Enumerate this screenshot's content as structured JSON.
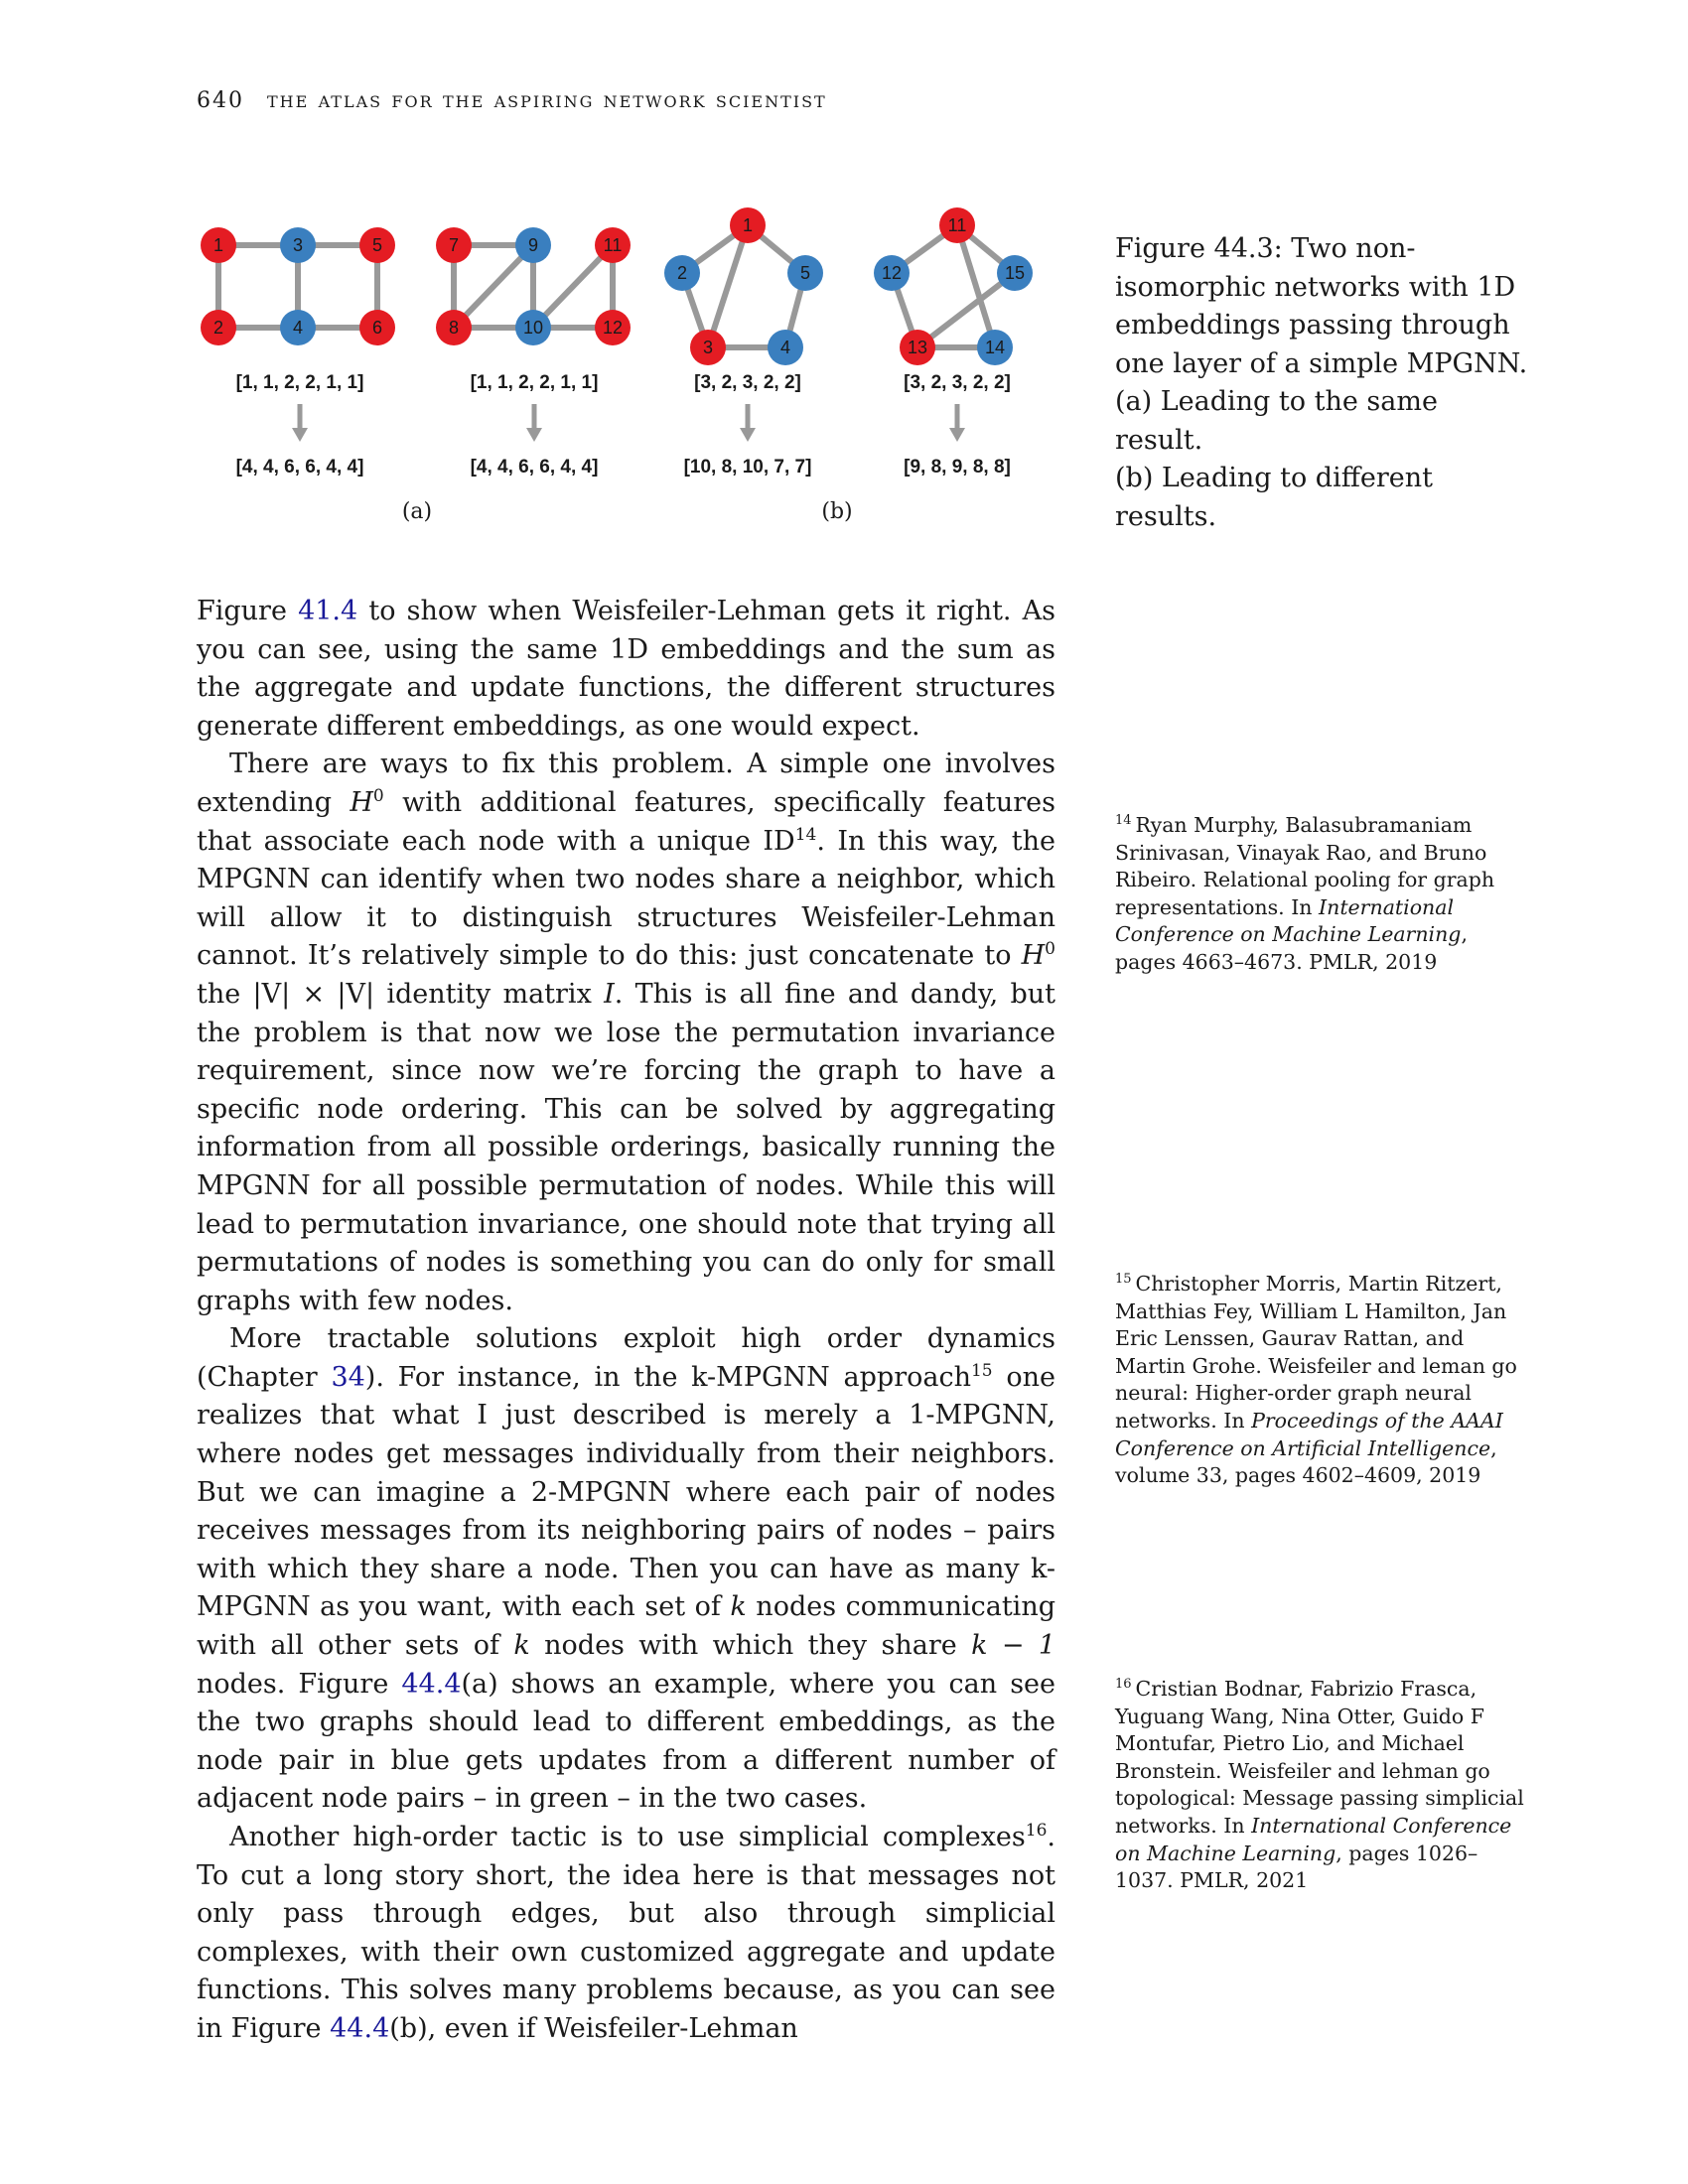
{
  "header": {
    "page_number": "640",
    "running_title": "the atlas for the aspiring network scientist"
  },
  "figure": {
    "colors": {
      "red": "#e41c23",
      "blue": "#3a7fbf",
      "edge": "#999999"
    },
    "panels": [
      {
        "label": "(a)",
        "graphs": [
          {
            "nodes": [
              "1",
              "3",
              "5",
              "2",
              "4",
              "6"
            ],
            "input": "[1, 1, 2, 2, 1, 1]",
            "output": "[4, 4, 6, 6, 4, 4]"
          },
          {
            "nodes": [
              "7",
              "9",
              "11",
              "8",
              "10",
              "12"
            ],
            "input": "[1, 1, 2, 2, 1, 1]",
            "output": "[4, 4, 6, 6, 4, 4]"
          }
        ]
      },
      {
        "label": "(b)",
        "graphs": [
          {
            "nodes": [
              "1",
              "2",
              "5",
              "3",
              "4"
            ],
            "input": "[3, 2, 3, 2, 2]",
            "output": "[10, 8, 10, 7, 7]"
          },
          {
            "nodes": [
              "11",
              "12",
              "15",
              "13",
              "14"
            ],
            "input": "[3, 2, 3, 2, 2]",
            "output": "[9, 8, 9, 8, 8]"
          }
        ]
      }
    ]
  },
  "caption": {
    "line1": "Figure 44.3: Two non-isomorphic networks with 1D embeddings passing through one layer of a simple MPGNN.",
    "line2": "(a) Leading to the same result.",
    "line3": "(b) Leading to different results."
  },
  "body": {
    "p1": {
      "ref": "41.4",
      "before": "Figure ",
      "after": " to show when Weisfeiler-Lehman gets it right. As you can see, using the same 1D embeddings and the sum as the aggregate and update functions, the different structures generate different embeddings, as one would expect."
    },
    "p2": {
      "a": "There are ways to fix this problem. A simple one involves extending ",
      "h0": "H",
      "sup0": "0",
      "b": " with additional features, specifically features that associate each node with a unique ID",
      "fn": "14",
      "c": ". In this way, the MPGNN can identify when two nodes share a neighbor, which will allow it to distinguish structures Weisfeiler-Lehman cannot. It’s relatively simple to do this: just concatenate to ",
      "h0b": "H",
      "sup0b": "0",
      "d": " the |V| × |V| identity matrix ",
      "I": "I",
      "e": ". This is all fine and dandy, but the problem is that now we lose the permutation invariance requirement, since now we’re forcing the graph to have a specific node ordering. This can be solved by aggregating information from all possible orderings, basically running the MPGNN for all possible permutation of nodes. While this will lead to permutation invariance, one should note that trying all permutations of nodes is something you can do only for small graphs with few nodes."
    },
    "p3": {
      "a": "More tractable solutions exploit high order dynamics (Chapter ",
      "ref1": "34",
      "b": "). For instance, in the k-MPGNN approach",
      "fn": "15",
      "c": " one realizes that what I just described is merely a 1-MPGNN, where nodes get messages individually from their neighbors. But we can imagine a 2-MPGNN where each pair of nodes receives messages from its neighboring pairs of nodes – pairs with which they share a node. Then you can have as many k-MPGNN as you want, with each set of ",
      "k1": "k",
      "d": " nodes communicating with all other sets of ",
      "k2": "k",
      "e": " nodes with which they share ",
      "km1": "k − 1",
      "f": " nodes. Figure ",
      "ref2": "44.4",
      "g": "(a) shows an example, where you can see the two graphs should lead to different embeddings, as the node pair in blue gets updates from a different number of adjacent node pairs – in green – in the two cases."
    },
    "p4": {
      "a": "Another high-order tactic is to use simplicial complexes",
      "fn": "16",
      "b": ". To cut a long story short, the idea here is that messages not only pass through edges, but also through simplicial complexes, with their own customized aggregate and update functions. This solves many problems because, as you can see in Figure ",
      "ref": "44.4",
      "c": "(b), even if Weisfeiler-Lehman"
    }
  },
  "notes": [
    {
      "num": "14",
      "a": "Ryan Murphy, Balasubramaniam Srinivasan, Vinayak Rao, and Bruno Ribeiro. Relational pooling for graph representations. In ",
      "venue": "International Conference on Machine Learning",
      "b": ", pages 4663–4673. PMLR, 2019"
    },
    {
      "num": "15",
      "a": "Christopher Morris, Martin Ritzert, Matthias Fey, William L Hamilton, Jan Eric Lenssen, Gaurav Rattan, and Martin Grohe. Weisfeiler and leman go neural: Higher-order graph neural networks. In ",
      "venue": "Proceedings of the AAAI Conference on Artificial Intelligence",
      "b": ", volume 33, pages 4602–4609, 2019"
    },
    {
      "num": "16",
      "a": "Cristian Bodnar, Fabrizio Frasca, Yuguang Wang, Nina Otter, Guido F Montufar, Pietro Lio, and Michael Bronstein. Weisfeiler and lehman go topological: Message passing simplicial networks. In ",
      "venue": "International Conference on Machine Learning",
      "b": ", pages 1026–1037. PMLR, 2021"
    }
  ]
}
